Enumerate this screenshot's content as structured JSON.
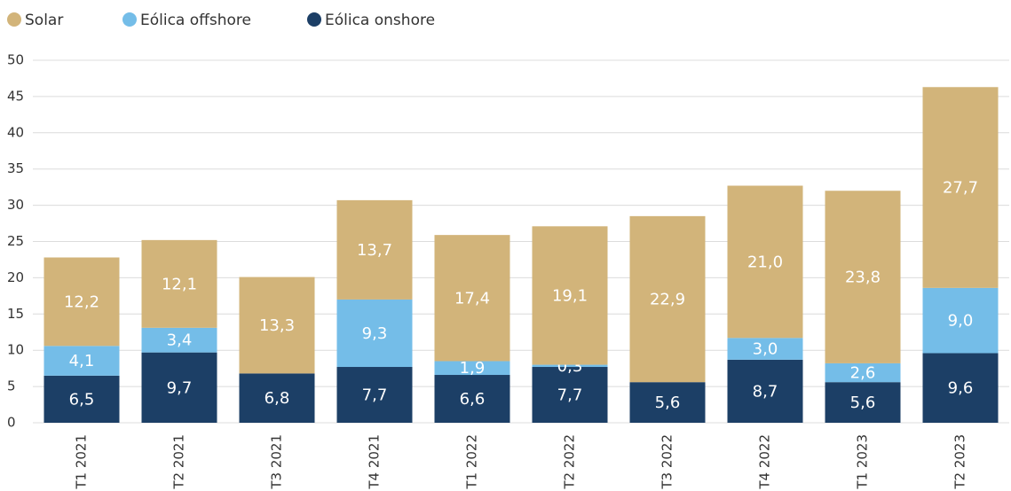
{
  "chart_data": {
    "type": "stacked_bar",
    "categories": [
      "T1 2021",
      "T2 2021",
      "T3 2021",
      "T4 2021",
      "T1 2022",
      "T2 2022",
      "T3 2022",
      "T4 2022",
      "T1 2023",
      "T2 2023"
    ],
    "series": [
      {
        "name": "Eólica onshore",
        "color": "#1c3f66",
        "values": [
          6.5,
          9.7,
          6.8,
          7.7,
          6.6,
          7.7,
          5.6,
          8.7,
          5.6,
          9.6
        ],
        "value_labels": [
          "6,5",
          "9,7",
          "6,8",
          "7,7",
          "6,6",
          "7,7",
          "5,6",
          "8,7",
          "5,6",
          "9,6"
        ]
      },
      {
        "name": "Eólica offshore",
        "color": "#74bde8",
        "values": [
          4.1,
          3.4,
          null,
          9.3,
          1.9,
          0.3,
          null,
          3.0,
          2.6,
          9.0
        ],
        "value_labels": [
          "4,1",
          "3,4",
          null,
          "9,3",
          "1,9",
          "0,3",
          null,
          "3,0",
          "2,6",
          "9,0"
        ]
      },
      {
        "name": "Solar",
        "color": "#d2b47a",
        "values": [
          12.2,
          12.1,
          13.3,
          13.7,
          17.4,
          19.1,
          22.9,
          21.0,
          23.8,
          27.7
        ],
        "value_labels": [
          "12,2",
          "12,1",
          "13,3",
          "13,7",
          "17,4",
          "19,1",
          "22,9",
          "21,0",
          "23,8",
          "27,7"
        ]
      }
    ],
    "legend_order": [
      2,
      1,
      0
    ],
    "ylim": [
      0,
      50
    ],
    "yticks": [
      0,
      5,
      10,
      15,
      20,
      25,
      30,
      35,
      40,
      45,
      50
    ],
    "grid": true
  }
}
